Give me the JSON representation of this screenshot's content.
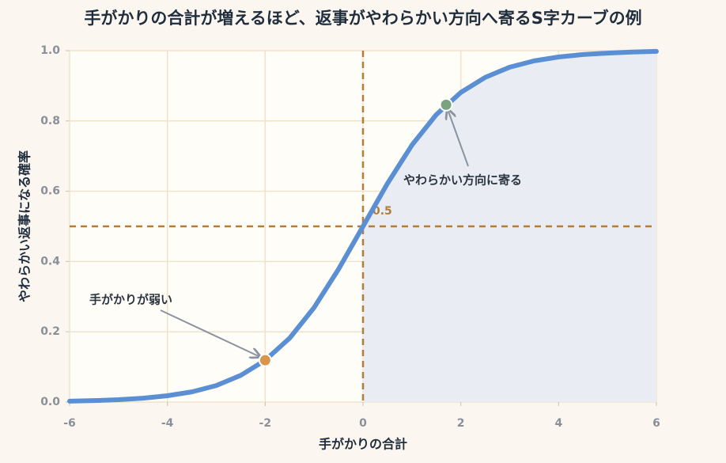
{
  "chart_data": {
    "type": "line",
    "title": "手がかりの合計が増えるほど、返事がやわらかい方向へ寄るS字カーブの例",
    "xlabel": "手がかりの合計",
    "ylabel": "やわらかい返事になる確率",
    "x": [
      -6,
      -5.5,
      -5,
      -4.5,
      -4,
      -3.5,
      -3,
      -2.5,
      -2,
      -1.5,
      -1,
      -0.5,
      0,
      0.5,
      1,
      1.5,
      2,
      2.5,
      3,
      3.5,
      4,
      4.5,
      5,
      5.5,
      6
    ],
    "values": [
      0.0025,
      0.0041,
      0.0067,
      0.011,
      0.018,
      0.029,
      0.047,
      0.076,
      0.119,
      0.182,
      0.269,
      0.378,
      0.5,
      0.622,
      0.731,
      0.818,
      0.881,
      0.924,
      0.953,
      0.971,
      0.982,
      0.989,
      0.993,
      0.996,
      0.998
    ],
    "color": "#5b8fd4",
    "fill_color": "#e9edf3",
    "xlim": [
      -6,
      6
    ],
    "ylim": [
      0,
      1
    ],
    "xticks": [
      -6,
      -4,
      -2,
      0,
      2,
      4,
      6
    ],
    "yticks": [
      {
        "value": 0,
        "label": "0.0"
      },
      0.2,
      0.4,
      0.6,
      0.8,
      {
        "value": 1,
        "label": "1.0"
      }
    ],
    "grid": true,
    "vline": 0,
    "hline": 0.5,
    "ref_color": "#b07d3a",
    "markers": [
      {
        "x": -2,
        "y": 0.119,
        "color": "#d9954a",
        "text": "手がかりが弱い"
      },
      {
        "x": 1.7,
        "y": 0.846,
        "color": "#79a47e",
        "text": "やわらかい方向に寄る"
      }
    ]
  }
}
